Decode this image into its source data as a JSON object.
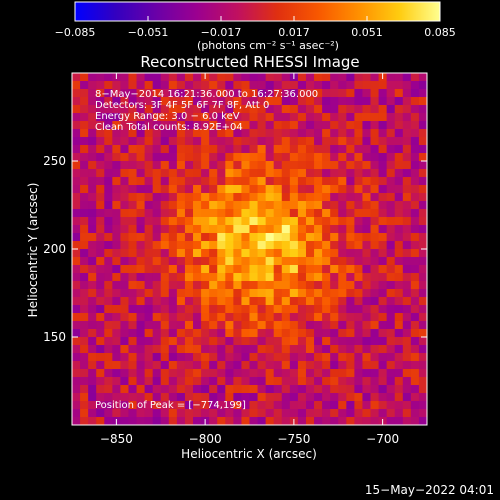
{
  "chart_data": {
    "type": "heatmap",
    "title": "Reconstructed RHESSI Image",
    "xlabel": "Heliocentric X (arcsec)",
    "ylabel": "Heliocentric Y (arcsec)",
    "xlim": [
      -875,
      -675
    ],
    "ylim": [
      100,
      300
    ],
    "xticks": [
      {
        "value": -850,
        "label": "−850"
      },
      {
        "value": -800,
        "label": "−800"
      },
      {
        "value": -750,
        "label": "−750"
      },
      {
        "value": -700,
        "label": "−700"
      }
    ],
    "yticks": [
      {
        "value": 150,
        "label": "150"
      },
      {
        "value": 200,
        "label": "200"
      },
      {
        "value": 250,
        "label": "250"
      }
    ],
    "grid": false,
    "colorbar": {
      "min": -0.085,
      "max": 0.085,
      "unit_label": "(photons cm⁻² s⁻¹ asec⁻²)",
      "ticks": [
        {
          "value": -0.085,
          "label": "−0.085"
        },
        {
          "value": -0.051,
          "label": "−0.051"
        },
        {
          "value": -0.017,
          "label": "−0.017"
        },
        {
          "value": 0.017,
          "label": "0.017"
        },
        {
          "value": 0.051,
          "label": "0.051"
        },
        {
          "value": 0.085,
          "label": "0.085"
        }
      ],
      "colors": [
        "#0000ff",
        "#3300c0",
        "#6a00a8",
        "#9b0090",
        "#c01060",
        "#e03010",
        "#f85800",
        "#ff9000",
        "#ffcc10",
        "#ffff90"
      ]
    },
    "annotations": [
      "8−May−2014 16:21:36.000 to 16:27:36.000",
      "Detectors: 3F 4F 5F 6F 7F 8F, Att 0",
      "Energy Range: 3.0 − 6.0 keV",
      "Clean    Total counts: 8.92E+04"
    ],
    "peak_annotation": "Position of Peak = [−774,199]",
    "peak": {
      "x": -774,
      "y": 199
    },
    "source": {
      "x": -770,
      "y": 205,
      "sigma_arcsec": 32
    },
    "background_level": -0.01
  },
  "footer": {
    "timestamp": "15−May−2022 04:01"
  }
}
